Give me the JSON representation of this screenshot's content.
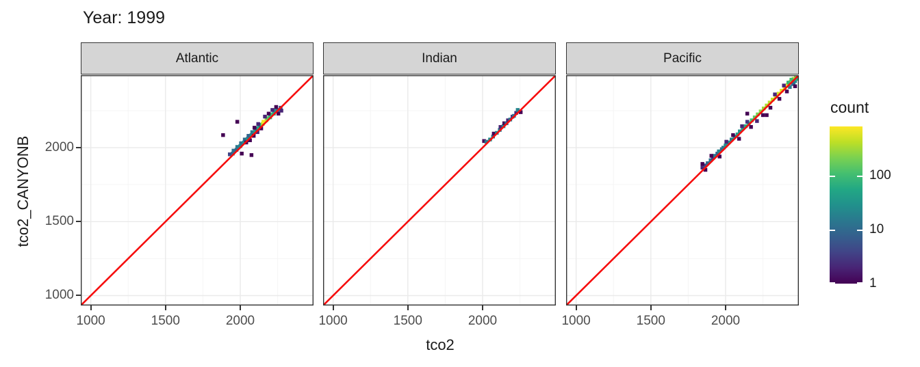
{
  "title": "Year: 1999",
  "axes": {
    "x_title": "tco2",
    "y_title": "tco2_CANYONB"
  },
  "legend": {
    "title": "count",
    "ticks": [
      {
        "value": 1,
        "label": "1"
      },
      {
        "value": 10,
        "label": "10"
      },
      {
        "value": 100,
        "label": "100"
      }
    ],
    "domain": [
      1,
      800
    ]
  },
  "colors": {
    "diagonal_line": "#f60d0d",
    "strip_bg": "#d5d5d5",
    "panel_border": "#333333",
    "grid_major": "#eaeaea",
    "grid_minor": "#f5f5f5",
    "tick_label": "#4d4d4d",
    "text": "#1a1a1a",
    "viridis": [
      "#440154",
      "#482475",
      "#414487",
      "#355f8d",
      "#2a788e",
      "#21918c",
      "#22a884",
      "#44bf70",
      "#7ad151",
      "#bddf26",
      "#fde725"
    ]
  },
  "chart_data": {
    "type": "heatmap",
    "subtype": "binned-scatter-geom_bin2d",
    "title": "Year: 1999",
    "xlabel": "tco2",
    "ylabel": "tco2_CANYONB",
    "xlim": [
      933,
      2490
    ],
    "ylim": [
      933,
      2490
    ],
    "x_ticks": [
      {
        "value": 1000,
        "label": "1000"
      },
      {
        "value": 1500,
        "label": "1500"
      },
      {
        "value": 2000,
        "label": "2000"
      }
    ],
    "y_ticks": [
      {
        "value": 1000,
        "label": "1000"
      },
      {
        "value": 1500,
        "label": "1500"
      },
      {
        "value": 2000,
        "label": "2000"
      }
    ],
    "minor_breaks": [
      1250,
      1750,
      2250
    ],
    "bin_size": 25,
    "grid": true,
    "legend_position": "right",
    "color_scale": {
      "palette": "viridis",
      "transform": "log10",
      "domain": [
        1,
        800
      ],
      "legend_title": "count",
      "legend_ticks": [
        1,
        10,
        100
      ]
    },
    "reference_line": {
      "type": "y=x",
      "color": "red"
    },
    "facets": [
      {
        "name": "Atlantic",
        "bins": [
          [
            1930,
            1955,
            4
          ],
          [
            1950,
            1960,
            10
          ],
          [
            1955,
            1980,
            12
          ],
          [
            1975,
            1985,
            8
          ],
          [
            1980,
            2005,
            15
          ],
          [
            2000,
            2010,
            20
          ],
          [
            2005,
            2030,
            12
          ],
          [
            2025,
            2035,
            25
          ],
          [
            2030,
            2055,
            10
          ],
          [
            2050,
            2060,
            30
          ],
          [
            2055,
            2080,
            8
          ],
          [
            2075,
            2085,
            25
          ],
          [
            2080,
            2105,
            15
          ],
          [
            2100,
            2110,
            40
          ],
          [
            2105,
            2130,
            20
          ],
          [
            2125,
            2135,
            60
          ],
          [
            2130,
            2155,
            30
          ],
          [
            2150,
            2160,
            300
          ],
          [
            2155,
            2175,
            700
          ],
          [
            2175,
            2185,
            500
          ],
          [
            2180,
            2200,
            150
          ],
          [
            2200,
            2205,
            80
          ],
          [
            2205,
            2225,
            100
          ],
          [
            2225,
            2230,
            60
          ],
          [
            2230,
            2250,
            30
          ],
          [
            2250,
            2255,
            15
          ],
          [
            2270,
            2270,
            5
          ],
          [
            2040,
            2035,
            1
          ],
          [
            2065,
            2050,
            1
          ],
          [
            2090,
            2080,
            1
          ],
          [
            2115,
            2105,
            2
          ],
          [
            2140,
            2130,
            1
          ],
          [
            2165,
            2210,
            2
          ],
          [
            2190,
            2230,
            1
          ],
          [
            2215,
            2255,
            2
          ],
          [
            2240,
            2275,
            1
          ],
          [
            2120,
            2160,
            2
          ],
          [
            2095,
            2135,
            1
          ],
          [
            2255,
            2230,
            1
          ],
          [
            2275,
            2250,
            2
          ],
          [
            1885,
            2085,
            1
          ],
          [
            1980,
            2175,
            1
          ],
          [
            2075,
            1950,
            1
          ],
          [
            2010,
            1960,
            1
          ]
        ]
      },
      {
        "name": "Indian",
        "bins": [
          [
            2010,
            2045,
            1
          ],
          [
            2025,
            2040,
            15
          ],
          [
            2050,
            2055,
            25
          ],
          [
            2070,
            2075,
            12
          ],
          [
            2075,
            2095,
            1
          ],
          [
            2095,
            2100,
            20
          ],
          [
            2115,
            2120,
            15
          ],
          [
            2120,
            2140,
            2
          ],
          [
            2140,
            2145,
            25
          ],
          [
            2145,
            2165,
            1
          ],
          [
            2160,
            2165,
            10
          ],
          [
            2170,
            2185,
            2
          ],
          [
            2185,
            2190,
            15
          ],
          [
            2200,
            2210,
            3
          ],
          [
            2210,
            2215,
            12
          ],
          [
            2225,
            2235,
            2
          ],
          [
            2235,
            2255,
            20
          ],
          [
            2255,
            2240,
            1
          ]
        ]
      },
      {
        "name": "Pacific",
        "bins": [
          [
            1845,
            1865,
            2
          ],
          [
            1860,
            1880,
            4
          ],
          [
            1880,
            1895,
            10
          ],
          [
            1900,
            1915,
            12
          ],
          [
            1915,
            1930,
            3
          ],
          [
            1925,
            1945,
            15
          ],
          [
            1945,
            1960,
            8
          ],
          [
            1955,
            1975,
            20
          ],
          [
            1975,
            1990,
            10
          ],
          [
            1985,
            2000,
            15
          ],
          [
            2000,
            2015,
            25
          ],
          [
            2020,
            2035,
            30
          ],
          [
            2040,
            2055,
            20
          ],
          [
            2060,
            2075,
            25
          ],
          [
            2080,
            2090,
            40
          ],
          [
            2095,
            2110,
            30
          ],
          [
            2115,
            2130,
            50
          ],
          [
            2135,
            2145,
            60
          ],
          [
            2155,
            2165,
            80
          ],
          [
            2175,
            2185,
            100
          ],
          [
            2195,
            2205,
            150
          ],
          [
            2215,
            2225,
            200
          ],
          [
            2235,
            2245,
            250
          ],
          [
            2255,
            2265,
            300
          ],
          [
            2275,
            2285,
            350
          ],
          [
            2295,
            2305,
            400
          ],
          [
            2315,
            2325,
            450
          ],
          [
            2335,
            2345,
            500
          ],
          [
            2355,
            2365,
            550
          ],
          [
            2375,
            2385,
            600
          ],
          [
            2395,
            2405,
            650
          ],
          [
            2415,
            2425,
            700
          ],
          [
            2435,
            2445,
            600
          ],
          [
            2455,
            2465,
            400
          ],
          [
            2470,
            2480,
            250
          ],
          [
            2420,
            2440,
            80
          ],
          [
            2440,
            2460,
            100
          ],
          [
            2455,
            2440,
            30
          ],
          [
            2465,
            2450,
            20
          ],
          [
            2475,
            2465,
            60
          ],
          [
            2430,
            2410,
            15
          ],
          [
            2450,
            2430,
            10
          ],
          [
            1845,
            1890,
            1
          ],
          [
            1865,
            1850,
            1
          ],
          [
            1905,
            1945,
            1
          ],
          [
            1960,
            1940,
            1
          ],
          [
            2005,
            2040,
            2
          ],
          [
            2050,
            2085,
            1
          ],
          [
            2090,
            2060,
            1
          ],
          [
            2110,
            2145,
            2
          ],
          [
            2145,
            2230,
            1
          ],
          [
            2170,
            2140,
            1
          ],
          [
            2210,
            2180,
            2
          ],
          [
            2250,
            2220,
            1
          ],
          [
            2275,
            2220,
            1
          ],
          [
            2300,
            2270,
            1
          ],
          [
            2330,
            2360,
            2
          ],
          [
            2360,
            2330,
            1
          ],
          [
            2390,
            2420,
            2
          ],
          [
            2410,
            2380,
            1
          ],
          [
            2465,
            2415,
            1
          ],
          [
            2145,
            2175,
            3
          ]
        ]
      }
    ]
  }
}
